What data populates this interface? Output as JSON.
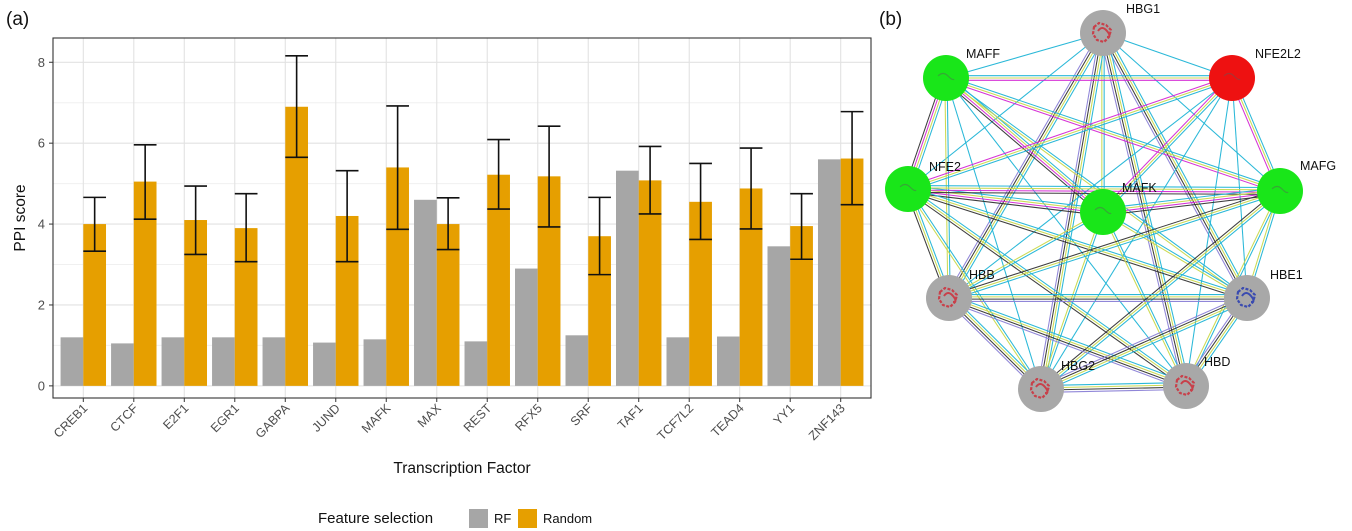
{
  "panels": {
    "a": "(a)",
    "b": "(b)"
  },
  "chart_data": {
    "type": "bar",
    "title": "",
    "xlabel": "Transcription Factor",
    "ylabel": "PPI score",
    "ylim": [
      -0.3,
      8.6
    ],
    "yticks": [
      0,
      2,
      4,
      6,
      8
    ],
    "grid": true,
    "categories": [
      "CREB1",
      "CTCF",
      "E2F1",
      "EGR1",
      "GABPA",
      "JUND",
      "MAFK",
      "MAX",
      "REST",
      "RFX5",
      "SRF",
      "TAF1",
      "TCF7L2",
      "TEAD4",
      "YY1",
      "ZNF143"
    ],
    "series": [
      {
        "name": "RF",
        "color": "#a6a6a6",
        "values": [
          1.2,
          1.05,
          1.2,
          1.2,
          1.2,
          1.07,
          1.15,
          4.6,
          1.1,
          2.9,
          1.25,
          5.32,
          1.2,
          1.22,
          3.45,
          5.6
        ]
      },
      {
        "name": "Random",
        "color": "#e69f00",
        "values": [
          4.0,
          5.05,
          4.1,
          3.9,
          6.9,
          4.2,
          5.4,
          4.0,
          5.22,
          5.18,
          3.7,
          5.08,
          4.55,
          4.88,
          3.95,
          5.62
        ],
        "error_low": [
          3.33,
          4.12,
          3.25,
          3.07,
          5.65,
          3.07,
          3.87,
          3.37,
          4.37,
          3.93,
          2.75,
          4.25,
          3.62,
          3.88,
          3.13,
          4.48
        ],
        "error_high": [
          4.66,
          5.96,
          4.94,
          4.75,
          8.16,
          5.32,
          6.92,
          4.65,
          6.09,
          6.42,
          4.66,
          5.92,
          5.5,
          5.88,
          4.75,
          6.78
        ]
      }
    ],
    "legend": {
      "title": "Feature selection",
      "position": "bottom",
      "items": [
        "RF",
        "Random"
      ]
    }
  },
  "network": {
    "nodes": [
      {
        "id": "HBG1",
        "label": "HBG1",
        "color": "#a8a8a8",
        "protein": "red"
      },
      {
        "id": "MAFF",
        "label": "MAFF",
        "color": "#19e619",
        "protein": "none"
      },
      {
        "id": "NFE2L2",
        "label": "NFE2L2",
        "color": "#ee1111",
        "protein": "none"
      },
      {
        "id": "NFE2",
        "label": "NFE2",
        "color": "#19e619",
        "protein": "none"
      },
      {
        "id": "MAFK",
        "label": "MAFK",
        "color": "#19e619",
        "protein": "none"
      },
      {
        "id": "MAFG",
        "label": "MAFG",
        "color": "#19e619",
        "protein": "none"
      },
      {
        "id": "HBB",
        "label": "HBB",
        "color": "#a8a8a8",
        "protein": "red"
      },
      {
        "id": "HBE1",
        "label": "HBE1",
        "color": "#a8a8a8",
        "protein": "blue"
      },
      {
        "id": "HBG2",
        "label": "HBG2",
        "color": "#a8a8a8",
        "protein": "red"
      },
      {
        "id": "HBD",
        "label": "HBD",
        "color": "#a8a8a8",
        "protein": "red"
      }
    ],
    "edge_colors": [
      "#1fb4d6",
      "#c9d84a",
      "#d428d4",
      "#333333",
      "#8a7fd6"
    ],
    "edges": [
      [
        "HBG1",
        "MAFF",
        [
          0
        ]
      ],
      [
        "HBG1",
        "NFE2L2",
        [
          0
        ]
      ],
      [
        "HBG1",
        "NFE2",
        [
          0
        ]
      ],
      [
        "HBG1",
        "MAFK",
        [
          0,
          1
        ]
      ],
      [
        "HBG1",
        "MAFG",
        [
          0
        ]
      ],
      [
        "HBG1",
        "HBB",
        [
          0,
          1,
          3,
          4
        ]
      ],
      [
        "HBG1",
        "HBE1",
        [
          0,
          1,
          3,
          4
        ]
      ],
      [
        "HBG1",
        "HBG2",
        [
          0,
          1,
          3,
          4
        ]
      ],
      [
        "HBG1",
        "HBD",
        [
          0,
          1,
          3,
          4
        ]
      ],
      [
        "MAFF",
        "NFE2L2",
        [
          0,
          1,
          2
        ]
      ],
      [
        "MAFF",
        "NFE2",
        [
          0,
          1,
          2,
          3
        ]
      ],
      [
        "MAFF",
        "MAFK",
        [
          0,
          1,
          2,
          3
        ]
      ],
      [
        "MAFF",
        "MAFG",
        [
          0,
          1,
          2
        ]
      ],
      [
        "MAFF",
        "HBB",
        [
          0,
          1
        ]
      ],
      [
        "MAFF",
        "HBE1",
        [
          0,
          1
        ]
      ],
      [
        "MAFF",
        "HBG2",
        [
          0
        ]
      ],
      [
        "MAFF",
        "HBD",
        [
          0
        ]
      ],
      [
        "NFE2L2",
        "NFE2",
        [
          0,
          1,
          2
        ]
      ],
      [
        "NFE2L2",
        "MAFK",
        [
          0,
          1,
          2
        ]
      ],
      [
        "NFE2L2",
        "MAFG",
        [
          0,
          1,
          2
        ]
      ],
      [
        "NFE2L2",
        "HBB",
        [
          0
        ]
      ],
      [
        "NFE2L2",
        "HBE1",
        [
          0
        ]
      ],
      [
        "NFE2L2",
        "HBG2",
        [
          0
        ]
      ],
      [
        "NFE2L2",
        "HBD",
        [
          0
        ]
      ],
      [
        "NFE2",
        "MAFK",
        [
          0,
          1,
          2,
          3
        ]
      ],
      [
        "NFE2",
        "MAFG",
        [
          0,
          1,
          2,
          3
        ]
      ],
      [
        "NFE2",
        "HBB",
        [
          0,
          1,
          3
        ]
      ],
      [
        "NFE2",
        "HBE1",
        [
          0,
          1,
          3
        ]
      ],
      [
        "NFE2",
        "HBG2",
        [
          0,
          1
        ]
      ],
      [
        "NFE2",
        "HBD",
        [
          0,
          1,
          3
        ]
      ],
      [
        "MAFK",
        "MAFG",
        [
          0,
          1,
          2,
          3
        ]
      ],
      [
        "MAFK",
        "HBB",
        [
          0,
          1
        ]
      ],
      [
        "MAFK",
        "HBE1",
        [
          0,
          1
        ]
      ],
      [
        "MAFK",
        "HBG2",
        [
          0,
          1
        ]
      ],
      [
        "MAFK",
        "HBD",
        [
          0,
          1
        ]
      ],
      [
        "MAFG",
        "HBB",
        [
          0,
          1,
          3
        ]
      ],
      [
        "MAFG",
        "HBE1",
        [
          0,
          1
        ]
      ],
      [
        "MAFG",
        "HBG2",
        [
          0,
          1,
          3
        ]
      ],
      [
        "MAFG",
        "HBD",
        [
          0,
          1
        ]
      ],
      [
        "HBB",
        "HBE1",
        [
          0,
          1,
          3,
          4
        ]
      ],
      [
        "HBB",
        "HBG2",
        [
          0,
          1,
          3,
          4
        ]
      ],
      [
        "HBB",
        "HBD",
        [
          0,
          1,
          3,
          4
        ]
      ],
      [
        "HBE1",
        "HBG2",
        [
          0,
          1,
          3,
          4
        ]
      ],
      [
        "HBE1",
        "HBD",
        [
          0,
          1,
          3,
          4
        ]
      ],
      [
        "HBG2",
        "HBD",
        [
          0,
          1,
          3,
          4
        ]
      ]
    ]
  }
}
